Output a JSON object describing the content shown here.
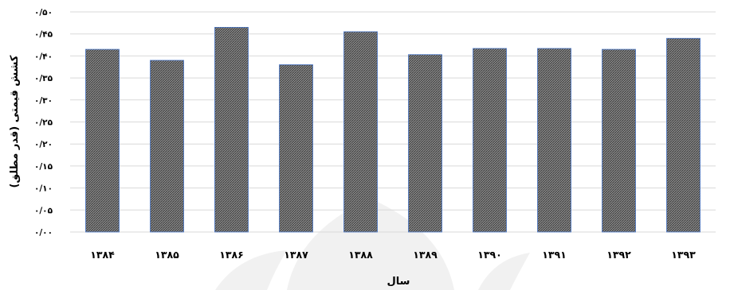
{
  "chart_data": {
    "type": "bar",
    "categories": [
      "۱۳۸۴",
      "۱۳۸۵",
      "۱۳۸۶",
      "۱۳۸۷",
      "۱۳۸۸",
      "۱۳۸۹",
      "۱۳۹۰",
      "۱۳۹۱",
      "۱۳۹۲",
      "۱۳۹۳"
    ],
    "values": [
      0.415,
      0.39,
      0.465,
      0.38,
      0.455,
      0.403,
      0.417,
      0.417,
      0.415,
      0.44
    ],
    "xlabel": "سال",
    "ylabel": "کشش قیمتی (قدر مطلق)",
    "ylim": [
      0,
      0.5
    ],
    "yticks": [
      0,
      0.05,
      0.1,
      0.15,
      0.2,
      0.25,
      0.3,
      0.35,
      0.4,
      0.45,
      0.5
    ],
    "ytick_labels": [
      "۰/۰۰",
      "۰/۰۵",
      "۰/۱۰",
      "۰/۱۵",
      "۰/۲۰",
      "۰/۲۵",
      "۰/۳۰",
      "۰/۳۵",
      "۰/۴۰",
      "۰/۴۵",
      "۰/۵۰"
    ],
    "grid": true,
    "legend": "none",
    "bar_color": "#6b6b6b",
    "bar_edge_color": "#4472c4"
  }
}
